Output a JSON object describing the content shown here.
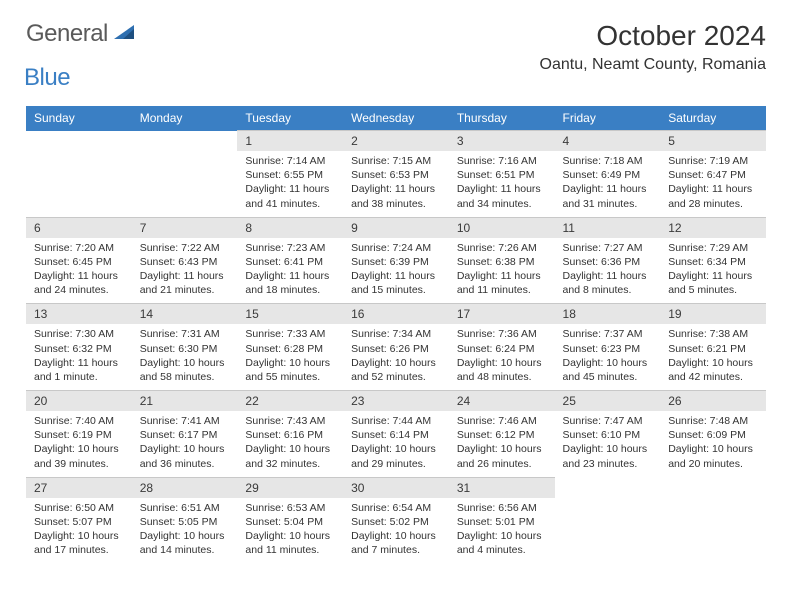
{
  "logo": {
    "text1": "General",
    "text2": "Blue"
  },
  "title": "October 2024",
  "location": "Oantu, Neamt County, Romania",
  "colors": {
    "header_bg": "#3a7fc4",
    "header_fg": "#ffffff",
    "daynum_bg": "#e6e6e6",
    "text": "#333333"
  },
  "day_headers": [
    "Sunday",
    "Monday",
    "Tuesday",
    "Wednesday",
    "Thursday",
    "Friday",
    "Saturday"
  ],
  "weeks": [
    [
      null,
      null,
      {
        "n": "1",
        "sr": "7:14 AM",
        "ss": "6:55 PM",
        "dl": "11 hours and 41 minutes."
      },
      {
        "n": "2",
        "sr": "7:15 AM",
        "ss": "6:53 PM",
        "dl": "11 hours and 38 minutes."
      },
      {
        "n": "3",
        "sr": "7:16 AM",
        "ss": "6:51 PM",
        "dl": "11 hours and 34 minutes."
      },
      {
        "n": "4",
        "sr": "7:18 AM",
        "ss": "6:49 PM",
        "dl": "11 hours and 31 minutes."
      },
      {
        "n": "5",
        "sr": "7:19 AM",
        "ss": "6:47 PM",
        "dl": "11 hours and 28 minutes."
      }
    ],
    [
      {
        "n": "6",
        "sr": "7:20 AM",
        "ss": "6:45 PM",
        "dl": "11 hours and 24 minutes."
      },
      {
        "n": "7",
        "sr": "7:22 AM",
        "ss": "6:43 PM",
        "dl": "11 hours and 21 minutes."
      },
      {
        "n": "8",
        "sr": "7:23 AM",
        "ss": "6:41 PM",
        "dl": "11 hours and 18 minutes."
      },
      {
        "n": "9",
        "sr": "7:24 AM",
        "ss": "6:39 PM",
        "dl": "11 hours and 15 minutes."
      },
      {
        "n": "10",
        "sr": "7:26 AM",
        "ss": "6:38 PM",
        "dl": "11 hours and 11 minutes."
      },
      {
        "n": "11",
        "sr": "7:27 AM",
        "ss": "6:36 PM",
        "dl": "11 hours and 8 minutes."
      },
      {
        "n": "12",
        "sr": "7:29 AM",
        "ss": "6:34 PM",
        "dl": "11 hours and 5 minutes."
      }
    ],
    [
      {
        "n": "13",
        "sr": "7:30 AM",
        "ss": "6:32 PM",
        "dl": "11 hours and 1 minute."
      },
      {
        "n": "14",
        "sr": "7:31 AM",
        "ss": "6:30 PM",
        "dl": "10 hours and 58 minutes."
      },
      {
        "n": "15",
        "sr": "7:33 AM",
        "ss": "6:28 PM",
        "dl": "10 hours and 55 minutes."
      },
      {
        "n": "16",
        "sr": "7:34 AM",
        "ss": "6:26 PM",
        "dl": "10 hours and 52 minutes."
      },
      {
        "n": "17",
        "sr": "7:36 AM",
        "ss": "6:24 PM",
        "dl": "10 hours and 48 minutes."
      },
      {
        "n": "18",
        "sr": "7:37 AM",
        "ss": "6:23 PM",
        "dl": "10 hours and 45 minutes."
      },
      {
        "n": "19",
        "sr": "7:38 AM",
        "ss": "6:21 PM",
        "dl": "10 hours and 42 minutes."
      }
    ],
    [
      {
        "n": "20",
        "sr": "7:40 AM",
        "ss": "6:19 PM",
        "dl": "10 hours and 39 minutes."
      },
      {
        "n": "21",
        "sr": "7:41 AM",
        "ss": "6:17 PM",
        "dl": "10 hours and 36 minutes."
      },
      {
        "n": "22",
        "sr": "7:43 AM",
        "ss": "6:16 PM",
        "dl": "10 hours and 32 minutes."
      },
      {
        "n": "23",
        "sr": "7:44 AM",
        "ss": "6:14 PM",
        "dl": "10 hours and 29 minutes."
      },
      {
        "n": "24",
        "sr": "7:46 AM",
        "ss": "6:12 PM",
        "dl": "10 hours and 26 minutes."
      },
      {
        "n": "25",
        "sr": "7:47 AM",
        "ss": "6:10 PM",
        "dl": "10 hours and 23 minutes."
      },
      {
        "n": "26",
        "sr": "7:48 AM",
        "ss": "6:09 PM",
        "dl": "10 hours and 20 minutes."
      }
    ],
    [
      {
        "n": "27",
        "sr": "6:50 AM",
        "ss": "5:07 PM",
        "dl": "10 hours and 17 minutes."
      },
      {
        "n": "28",
        "sr": "6:51 AM",
        "ss": "5:05 PM",
        "dl": "10 hours and 14 minutes."
      },
      {
        "n": "29",
        "sr": "6:53 AM",
        "ss": "5:04 PM",
        "dl": "10 hours and 11 minutes."
      },
      {
        "n": "30",
        "sr": "6:54 AM",
        "ss": "5:02 PM",
        "dl": "10 hours and 7 minutes."
      },
      {
        "n": "31",
        "sr": "6:56 AM",
        "ss": "5:01 PM",
        "dl": "10 hours and 4 minutes."
      },
      null,
      null
    ]
  ],
  "labels": {
    "sunrise": "Sunrise: ",
    "sunset": "Sunset: ",
    "daylight": "Daylight: "
  }
}
